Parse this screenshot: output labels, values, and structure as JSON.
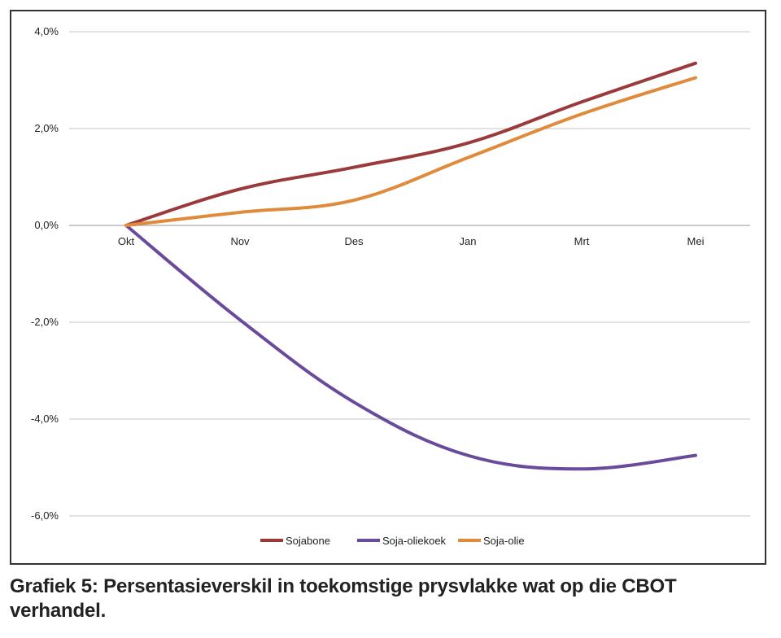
{
  "caption": "Grafiek 5: Persentasieverskil in toekomstige prysvlakke wat op die CBOT verhandel.",
  "chart_data": {
    "type": "line",
    "categories": [
      "Okt",
      "Nov",
      "Des",
      "Jan",
      "Mrt",
      "Mei"
    ],
    "ylim": [
      -6.0,
      4.0
    ],
    "yticks": [
      -6.0,
      -4.0,
      -2.0,
      0.0,
      2.0,
      4.0
    ],
    "ytick_labels": [
      "-6,0%",
      "-4,0%",
      "-2,0%",
      "0,0%",
      "2,0%",
      "4,0%"
    ],
    "grid": true,
    "legend_position": "bottom",
    "series": [
      {
        "name": "Sojabone",
        "color": "#9b3a3a",
        "values": [
          0.0,
          0.75,
          1.2,
          1.7,
          2.55,
          3.35
        ]
      },
      {
        "name": "Soja-oliekoek",
        "color": "#6a4a9a",
        "values": [
          0.0,
          -1.95,
          -3.65,
          -4.75,
          -5.03,
          -4.75
        ]
      },
      {
        "name": "Soja-olie",
        "color": "#e08a3c",
        "values": [
          0.0,
          0.27,
          0.52,
          1.4,
          2.3,
          3.05
        ]
      }
    ]
  }
}
